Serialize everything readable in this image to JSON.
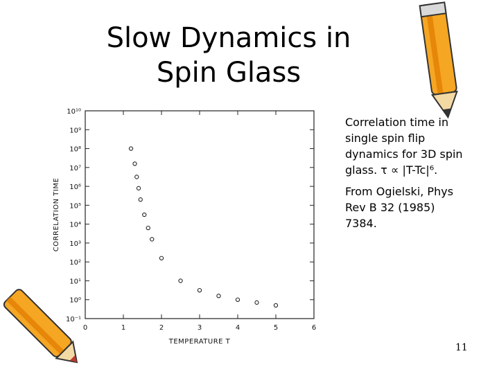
{
  "slide": {
    "title_line1": "Slow Dynamics in",
    "title_line2": "Spin Glass",
    "description": "Correlation time in single spin flip dynamics for 3D spin glass.  τ ∝ |T-Tc|⁶.",
    "reference": "From Ogielski, Phys Rev B 32 (1985) 7384.",
    "page_number": "11"
  },
  "chart_data": {
    "type": "scatter",
    "xlabel": "TEMPERATURE T",
    "ylabel": "CORRELATION TIME",
    "xlim": [
      0,
      6
    ],
    "ylim_log10": [
      -1,
      10
    ],
    "log_y": true,
    "x_ticks": [
      "0",
      "1",
      "2",
      "3",
      "4",
      "5",
      "6"
    ],
    "y_ticks": [
      "10⁻¹",
      "10⁰",
      "10¹",
      "10²",
      "10³",
      "10⁴",
      "10⁵",
      "10⁶",
      "10⁷",
      "10⁸",
      "10⁹",
      "10¹⁰"
    ],
    "grid": false,
    "points": [
      {
        "x": 1.2,
        "log10_y": 8.0
      },
      {
        "x": 1.3,
        "log10_y": 7.2
      },
      {
        "x": 1.35,
        "log10_y": 6.5
      },
      {
        "x": 1.4,
        "log10_y": 5.9
      },
      {
        "x": 1.45,
        "log10_y": 5.3
      },
      {
        "x": 1.55,
        "log10_y": 4.5
      },
      {
        "x": 1.65,
        "log10_y": 3.8
      },
      {
        "x": 1.75,
        "log10_y": 3.2
      },
      {
        "x": 2.0,
        "log10_y": 2.2
      },
      {
        "x": 2.5,
        "log10_y": 1.0
      },
      {
        "x": 3.0,
        "log10_y": 0.5
      },
      {
        "x": 3.5,
        "log10_y": 0.2
      },
      {
        "x": 4.0,
        "log10_y": 0.0
      },
      {
        "x": 4.5,
        "log10_y": -0.15
      },
      {
        "x": 5.0,
        "log10_y": -0.3
      }
    ]
  },
  "colors": {
    "pencil_body": "#f5a623",
    "pencil_stripe": "#e07b00",
    "pencil_tip": "#c0392b",
    "point_stroke": "#222222"
  },
  "icons": [
    "pencil-icon-top-right",
    "pencil-icon-bottom-left"
  ]
}
